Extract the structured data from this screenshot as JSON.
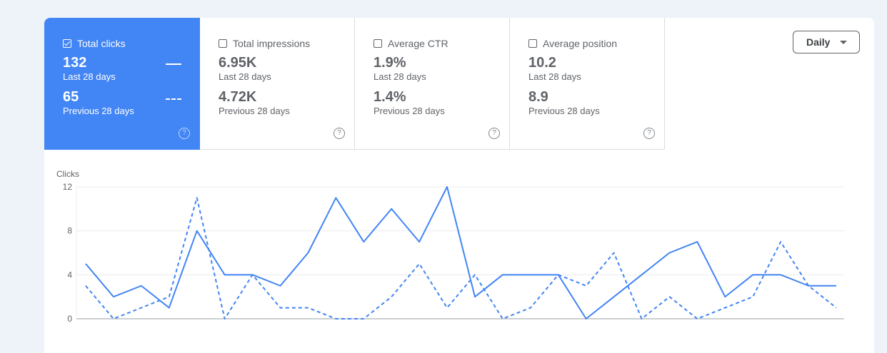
{
  "tiles": [
    {
      "label": "Total clicks",
      "value": "132",
      "period": "Last 28 days",
      "prev_value": "65",
      "prev_period": "Previous 28 days",
      "checked": true
    },
    {
      "label": "Total impressions",
      "value": "6.95K",
      "period": "Last 28 days",
      "prev_value": "4.72K",
      "prev_period": "Previous 28 days",
      "checked": false
    },
    {
      "label": "Average CTR",
      "value": "1.9%",
      "period": "Last 28 days",
      "prev_value": "1.4%",
      "prev_period": "Previous 28 days",
      "checked": false
    },
    {
      "label": "Average position",
      "value": "10.2",
      "period": "Last 28 days",
      "prev_value": "8.9",
      "prev_period": "Previous 28 days",
      "checked": false
    }
  ],
  "help_glyph": "?",
  "granularity": {
    "selected": "Daily"
  },
  "colors": {
    "accent": "#4285f4",
    "line": "#4285f4"
  },
  "chart_data": {
    "type": "line",
    "ylabel": "Clicks",
    "ylim": [
      0,
      12
    ],
    "yticks": [
      0,
      4,
      8,
      12
    ],
    "x": [
      1,
      2,
      3,
      4,
      5,
      6,
      7,
      8,
      9,
      10,
      11,
      12,
      13,
      14,
      15,
      16,
      17,
      18,
      19,
      20,
      21,
      22,
      23,
      24,
      25,
      26,
      27,
      28
    ],
    "series": [
      {
        "style": "solid",
        "values": [
          5,
          2,
          3,
          1,
          8,
          4,
          4,
          3,
          6,
          11,
          7,
          10,
          7,
          12,
          2,
          4,
          4,
          4,
          0,
          2,
          4,
          6,
          7,
          2,
          4,
          4,
          3,
          3
        ]
      },
      {
        "style": "dashed",
        "values": [
          3,
          0,
          1,
          2,
          11,
          0,
          4,
          1,
          1,
          0,
          0,
          2,
          5,
          1,
          4,
          0,
          1,
          4,
          3,
          6,
          0,
          2,
          0,
          1,
          2,
          7,
          3,
          1
        ]
      }
    ],
    "grid": true
  }
}
